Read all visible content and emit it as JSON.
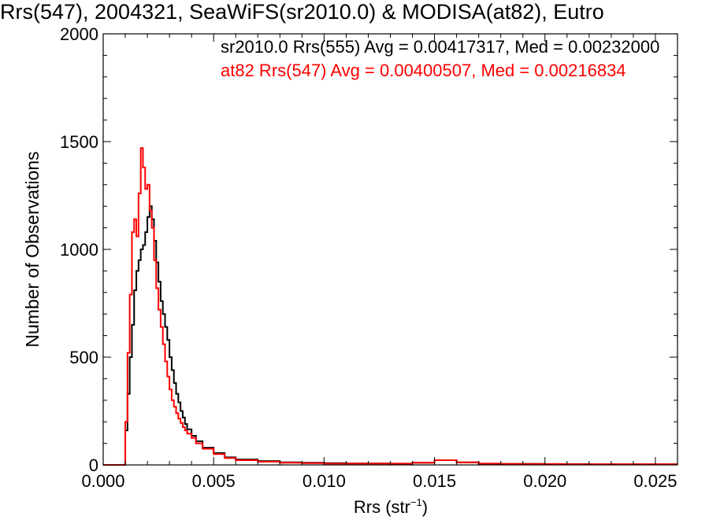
{
  "chart_data": {
    "type": "line",
    "title": "Rrs(547), 2004321, SeaWiFS(sr2010.0) & MODISA(at82), Eutro",
    "xlabel": "Rrs (str",
    "xlabel_sup": "−1",
    "xlabel_close": ")",
    "ylabel": "Number of Observations",
    "xlim": [
      0.0,
      0.026
    ],
    "ylim": [
      0,
      2000
    ],
    "x_ticks": [
      0.0,
      0.005,
      0.01,
      0.015,
      0.02,
      0.025
    ],
    "x_tick_labels": [
      "0.000",
      "0.005",
      "0.010",
      "0.015",
      "0.020",
      "0.025"
    ],
    "y_ticks": [
      0,
      500,
      1000,
      1500,
      2000
    ],
    "y_tick_labels": [
      "0",
      "500",
      "1000",
      "1500",
      "2000"
    ],
    "grid": false,
    "annotations": [
      {
        "text": "sr2010.0 Rrs(555) Avg = 0.00417317, Med = 0.00232000",
        "color": "#000000"
      },
      {
        "text": "at82 Rrs(547) Avg = 0.00400507, Med = 0.00216834",
        "color": "#ff0000"
      }
    ],
    "series": [
      {
        "color": "#000000",
        "x": [
          0.0,
          0.0008,
          0.001,
          0.0011,
          0.0012,
          0.0013,
          0.0014,
          0.0015,
          0.0016,
          0.0017,
          0.0018,
          0.0019,
          0.002,
          0.0021,
          0.0022,
          0.0023,
          0.0024,
          0.0025,
          0.0026,
          0.0027,
          0.0028,
          0.0029,
          0.003,
          0.0031,
          0.0032,
          0.0033,
          0.0034,
          0.0035,
          0.0036,
          0.0037,
          0.0038,
          0.004,
          0.0042,
          0.0045,
          0.005,
          0.0055,
          0.006,
          0.007,
          0.008,
          0.009,
          0.01,
          0.011,
          0.012,
          0.013,
          0.014,
          0.015,
          0.016,
          0.017,
          0.018,
          0.019,
          0.02,
          0.021,
          0.022,
          0.023,
          0.024,
          0.025,
          0.026
        ],
        "y": [
          0,
          0,
          160,
          330,
          500,
          650,
          810,
          900,
          950,
          1000,
          1020,
          1080,
          1150,
          1200,
          1140,
          1040,
          940,
          850,
          760,
          700,
          640,
          580,
          500,
          440,
          380,
          330,
          290,
          250,
          220,
          190,
          165,
          135,
          110,
          80,
          55,
          35,
          25,
          18,
          12,
          10,
          8,
          7,
          7,
          6,
          10,
          22,
          12,
          6,
          5,
          5,
          4,
          4,
          3,
          3,
          3,
          3,
          3
        ]
      },
      {
        "color": "#ff0000",
        "x": [
          0.0,
          0.0008,
          0.001,
          0.0011,
          0.0012,
          0.0013,
          0.0014,
          0.0015,
          0.0016,
          0.0017,
          0.0018,
          0.0019,
          0.002,
          0.0021,
          0.0022,
          0.0023,
          0.0024,
          0.0025,
          0.0026,
          0.0027,
          0.0028,
          0.0029,
          0.003,
          0.0031,
          0.0032,
          0.0033,
          0.0034,
          0.0035,
          0.0036,
          0.0037,
          0.0038,
          0.004,
          0.0042,
          0.0045,
          0.005,
          0.0055,
          0.006,
          0.007,
          0.008,
          0.009,
          0.01,
          0.011,
          0.012,
          0.013,
          0.014,
          0.015,
          0.016,
          0.017,
          0.018,
          0.019,
          0.02,
          0.021,
          0.022,
          0.023,
          0.024,
          0.025,
          0.026
        ],
        "y": [
          0,
          0,
          200,
          520,
          790,
          1080,
          1140,
          1060,
          1260,
          1470,
          1380,
          1280,
          1300,
          1180,
          1100,
          950,
          820,
          720,
          640,
          560,
          480,
          410,
          350,
          300,
          270,
          240,
          215,
          195,
          175,
          160,
          145,
          125,
          100,
          75,
          50,
          32,
          22,
          15,
          10,
          8,
          6,
          6,
          6,
          6,
          10,
          22,
          12,
          6,
          5,
          4,
          4,
          3,
          3,
          3,
          3,
          3,
          3
        ]
      }
    ]
  }
}
